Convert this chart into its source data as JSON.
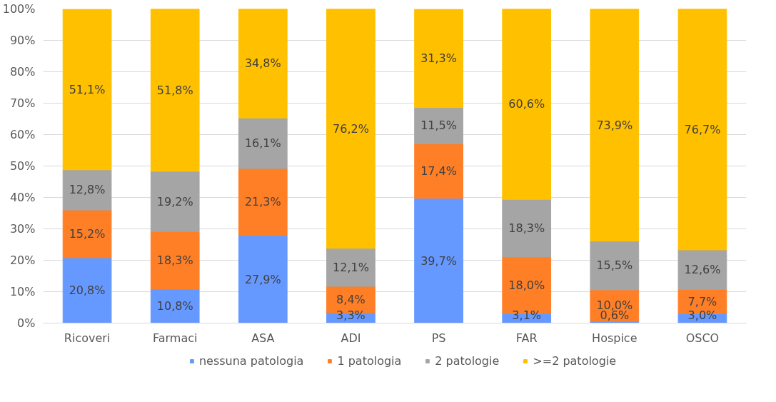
{
  "chart_data": {
    "type": "bar",
    "stacked": true,
    "categories": [
      "Ricoveri",
      "Farmaci",
      "ASA",
      "ADI",
      "PS",
      "FAR",
      "Hospice",
      "OSCO"
    ],
    "series": [
      {
        "name": "nessuna patologia",
        "color": "#6699ff",
        "values": [
          20.8,
          10.8,
          27.9,
          3.3,
          39.7,
          3.1,
          0.6,
          3.0
        ],
        "value_labels": [
          "20,8%",
          "10,8%",
          "27,9%",
          "3,3%",
          "39,7%",
          "3,1%",
          "0,6%",
          "3,0%"
        ]
      },
      {
        "name": "1 patologia",
        "color": "#ff7f27",
        "values": [
          15.2,
          18.3,
          21.3,
          8.4,
          17.4,
          18.0,
          10.0,
          7.7
        ],
        "value_labels": [
          "15,2%",
          "18,3%",
          "21,3%",
          "8,4%",
          "17,4%",
          "18,0%",
          "10,0%",
          "7,7%"
        ]
      },
      {
        "name": "2 patologie",
        "color": "#a5a5a5",
        "values": [
          12.8,
          19.2,
          16.1,
          12.1,
          11.5,
          18.3,
          15.5,
          12.6
        ],
        "value_labels": [
          "12,8%",
          "19,2%",
          "16,1%",
          "12,1%",
          "11,5%",
          "18,3%",
          "15,5%",
          "12,6%"
        ]
      },
      {
        "name": ">=2 patologie",
        "color": "#ffc000",
        "values": [
          51.1,
          51.8,
          34.8,
          76.2,
          31.3,
          60.6,
          73.9,
          76.7
        ],
        "value_labels": [
          "51,1%",
          "51,8%",
          "34,8%",
          "76,2%",
          "31,3%",
          "60,6%",
          "73,9%",
          "76,7%"
        ]
      }
    ],
    "ylim": [
      0,
      100
    ],
    "yticks": [
      {
        "value": 0,
        "label": "0%"
      },
      {
        "value": 10,
        "label": "10%"
      },
      {
        "value": 20,
        "label": "20%"
      },
      {
        "value": 30,
        "label": "30%"
      },
      {
        "value": 40,
        "label": "40%"
      },
      {
        "value": 50,
        "label": "50%"
      },
      {
        "value": 60,
        "label": "60%"
      },
      {
        "value": 70,
        "label": "70%"
      },
      {
        "value": 80,
        "label": "80%"
      },
      {
        "value": 90,
        "label": "90%"
      },
      {
        "value": 100,
        "label": "100%"
      }
    ],
    "grid": "y",
    "legend": "bottom"
  }
}
